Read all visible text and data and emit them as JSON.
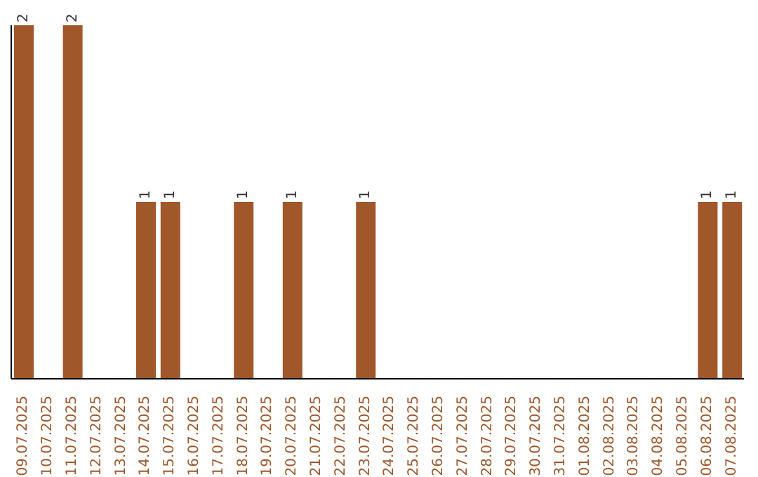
{
  "chart_data": {
    "type": "bar",
    "categories": [
      "09.07.2025",
      "10.07.2025",
      "11.07.2025",
      "12.07.2025",
      "13.07.2025",
      "14.07.2025",
      "15.07.2025",
      "16.07.2025",
      "17.07.2025",
      "18.07.2025",
      "19.07.2025",
      "20.07.2025",
      "21.07.2025",
      "22.07.2025",
      "23.07.2025",
      "24.07.2025",
      "25.07.2025",
      "26.07.2025",
      "27.07.2025",
      "28.07.2025",
      "29.07.2025",
      "30.07.2025",
      "31.07.2025",
      "01.08.2025",
      "02.08.2025",
      "03.08.2025",
      "04.08.2025",
      "05.08.2025",
      "06.08.2025",
      "07.08.2025"
    ],
    "values": [
      2,
      0,
      2,
      0,
      0,
      1,
      1,
      0,
      0,
      1,
      0,
      1,
      0,
      0,
      1,
      0,
      0,
      0,
      0,
      0,
      0,
      0,
      0,
      0,
      0,
      0,
      0,
      0,
      1,
      1
    ],
    "value_labels": [
      "2",
      null,
      "2",
      null,
      null,
      "1",
      "1",
      null,
      null,
      "1",
      null,
      "1",
      null,
      null,
      "1",
      null,
      null,
      null,
      null,
      null,
      null,
      null,
      null,
      null,
      null,
      null,
      null,
      null,
      "1",
      "1"
    ],
    "color": "#a0572a",
    "grid": false,
    "legend": false
  }
}
